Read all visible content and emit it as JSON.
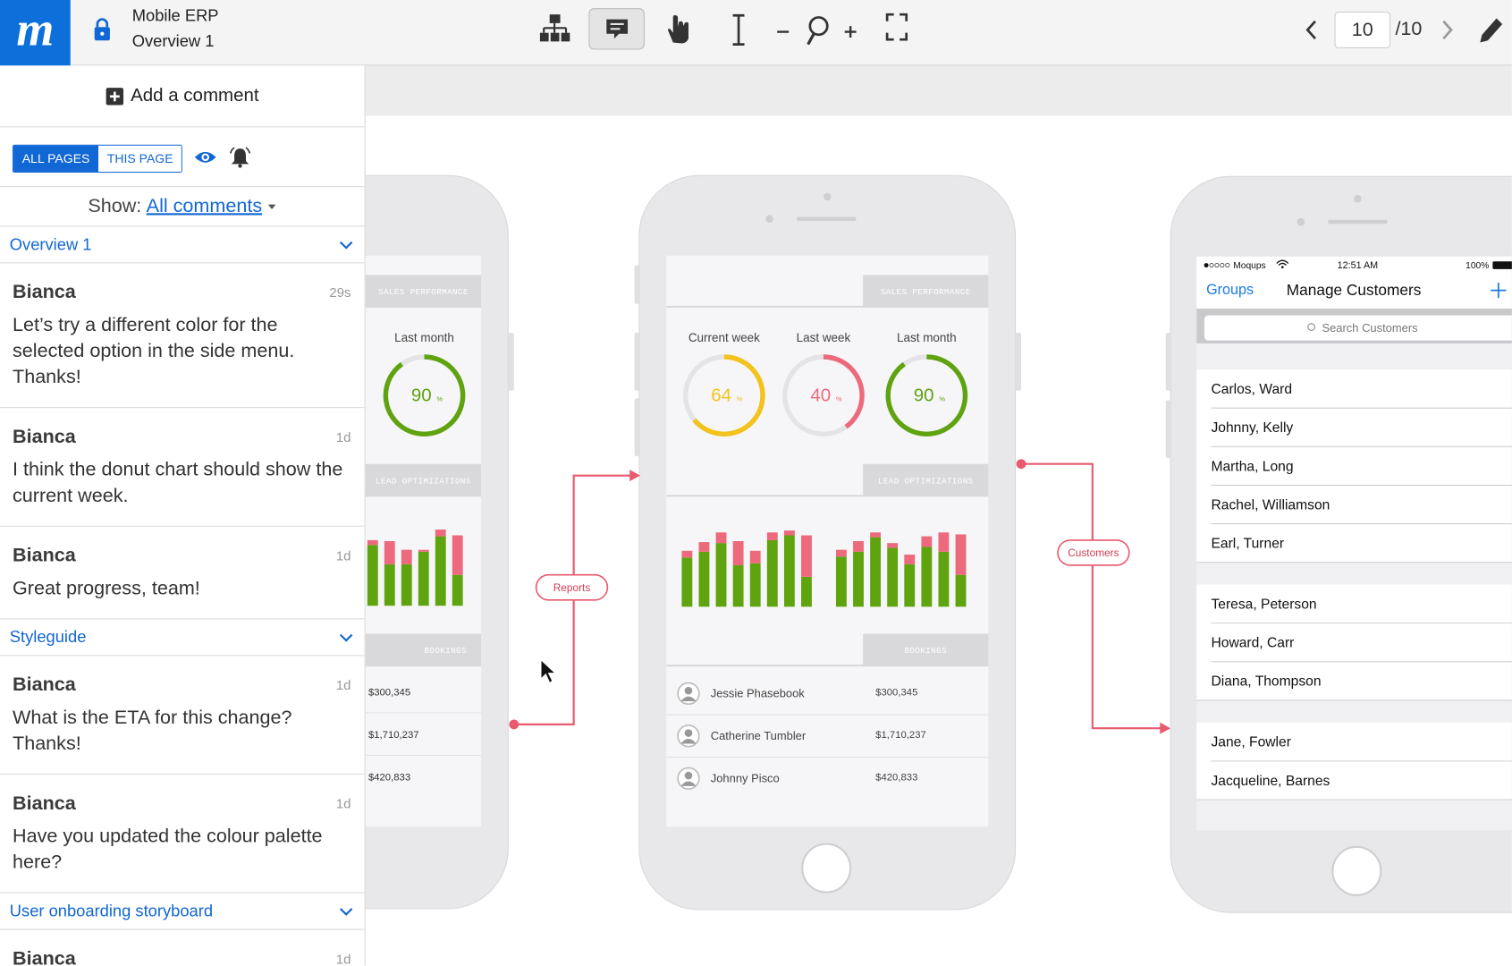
{
  "header": {
    "app_name": "Mobile ERP",
    "page_name": "Overview 1",
    "current_page": "10",
    "page_count": "/10"
  },
  "sidebar": {
    "add_comment": "Add a comment",
    "filters": [
      "ALL PAGES",
      "THIS PAGE"
    ],
    "show_label": "Show:",
    "show_value": "All comments",
    "sections": [
      {
        "title": "Overview 1",
        "comments": [
          {
            "author": "Bianca",
            "time": "29s",
            "text": "Let’s try a different color for the selected option in the side menu. Thanks!"
          },
          {
            "author": "Bianca",
            "time": "1d",
            "text": "I think the donut chart should show the current week."
          },
          {
            "author": "Bianca",
            "time": "1d",
            "text": "Great progress, team!"
          }
        ]
      },
      {
        "title": "Styleguide",
        "comments": [
          {
            "author": "Bianca",
            "time": "1d",
            "text": "What is the ETA for this change? Thanks!"
          },
          {
            "author": "Bianca",
            "time": "1d",
            "text": "Have you updated the colour palette here?"
          }
        ]
      },
      {
        "title": "User onboarding storyboard",
        "comments": [
          {
            "author": "Bianca",
            "time": "1d"
          }
        ]
      }
    ]
  },
  "canvas": {
    "links": [
      "Reports",
      "Customers"
    ],
    "phones": [
      {
        "sections": [
          "SALES PERFORMANCE",
          "LEAD OPTIMIZATIONS",
          "BOOKINGS"
        ],
        "donuts": [
          {
            "label": "Last month",
            "value": 90,
            "unit": "%",
            "color": "#5fa30f"
          }
        ],
        "bars": {
          "ylim": [
            0,
            80
          ],
          "series": [
            {
              "color": "#5fa30f",
              "values": [
                63,
                43,
                43,
                56,
                72,
                32
              ]
            },
            {
              "color": "#ec6a7c",
              "values": [
                5,
                24,
                15,
                2,
                7,
                41
              ]
            }
          ]
        },
        "bookings": [
          {
            "amount": "$300,345"
          },
          {
            "amount": "$1,710,237"
          },
          {
            "amount": "$420,833"
          }
        ]
      },
      {
        "sections": [
          "SALES PERFORMANCE",
          "LEAD OPTIMIZATIONS",
          "BOOKINGS"
        ],
        "donuts": [
          {
            "label": "Current week",
            "value": 64,
            "unit": "%",
            "color": "#f3c21b"
          },
          {
            "label": "Last week",
            "value": 40,
            "unit": "%",
            "color": "#ec6a7c"
          },
          {
            "label": "Last month",
            "value": 90,
            "unit": "%",
            "color": "#5fa30f"
          }
        ],
        "bars": {
          "ylim": [
            0,
            80
          ],
          "series": [
            {
              "color": "#5fa30f",
              "values": [
                51,
                57,
                66,
                43,
                45,
                69,
                74,
                31,
                52,
                57,
                72,
                61,
                44,
                62,
                57,
                33
              ]
            },
            {
              "color": "#ec6a7c",
              "values": [
                7,
                10,
                11,
                25,
                13,
                8,
                5,
                43,
                7,
                11,
                5,
                5,
                10,
                11,
                20,
                42
              ]
            }
          ]
        },
        "bookings": [
          {
            "name": "Jessie Phasebook",
            "amount": "$300,345"
          },
          {
            "name": "Catherine Tumbler",
            "amount": "$1,710,237"
          },
          {
            "name": "Johnny Pisco",
            "amount": "$420,833"
          }
        ]
      },
      {
        "status": {
          "carrier": "Moqups",
          "time": "12:51 AM",
          "battery": "100%"
        },
        "back": "Groups",
        "title": "Manage Customers",
        "search": "Search Customers",
        "groups": [
          [
            "Carlos, Ward",
            "Johnny, Kelly",
            "Martha, Long",
            "Rachel, Williamson",
            "Earl, Turner"
          ],
          [
            "Teresa, Peterson",
            "Howard, Carr",
            "Diana, Thompson"
          ],
          [
            "Jane, Fowler",
            "Jacqueline, Barnes"
          ]
        ]
      }
    ]
  }
}
